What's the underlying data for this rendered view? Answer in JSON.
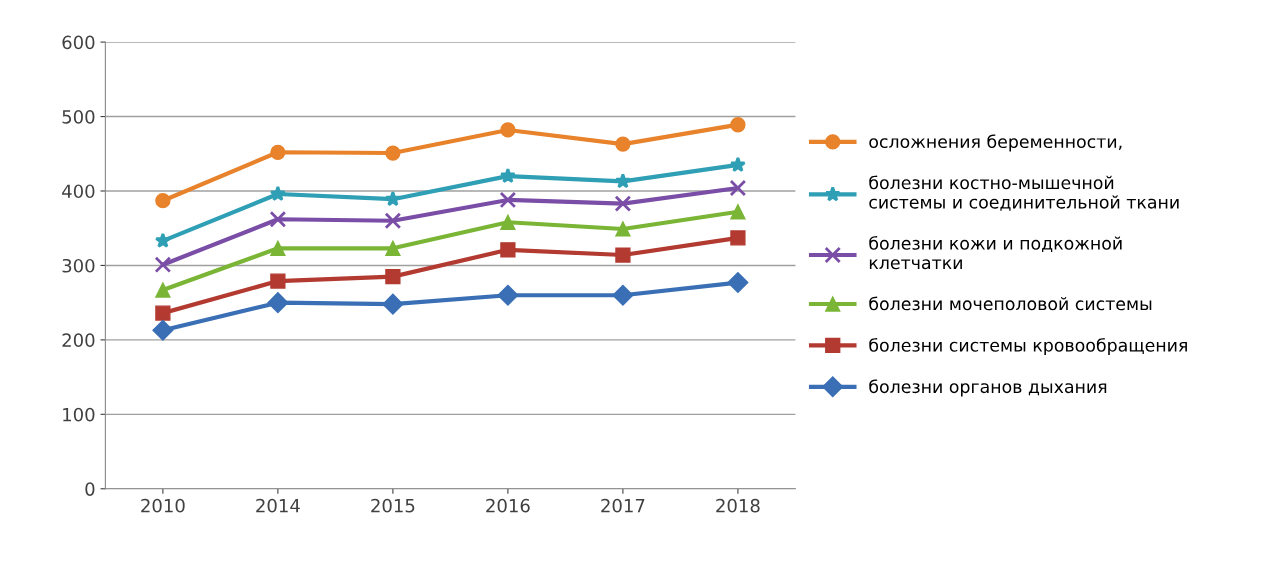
{
  "chart_data": {
    "type": "line",
    "categories": [
      "2010",
      "2014",
      "2015",
      "2016",
      "2017",
      "2018"
    ],
    "ylim": [
      0,
      600
    ],
    "yticks": [
      0,
      100,
      200,
      300,
      400,
      500,
      600
    ],
    "grid": "y",
    "legend": "right",
    "line_style": "solid",
    "series": [
      {
        "name": "осложнения беременности,",
        "color": "#e8822b",
        "marker": "circle",
        "values": [
          387,
          452,
          451,
          482,
          463,
          489
        ]
      },
      {
        "name": "болезни костно-мышечной системы и соединительной ткани",
        "color": "#2f9fb5",
        "marker": "star",
        "values": [
          333,
          396,
          389,
          420,
          413,
          435
        ]
      },
      {
        "name": "болезни кожи и подкожной клетчатки",
        "color": "#7a4ea6",
        "marker": "cross",
        "values": [
          301,
          362,
          360,
          388,
          383,
          404
        ]
      },
      {
        "name": "болезни мочеполовой системы",
        "color": "#7ab536",
        "marker": "triangle",
        "values": [
          267,
          323,
          323,
          358,
          349,
          372
        ]
      },
      {
        "name": "болезни системы кровообращения",
        "color": "#b23a30",
        "marker": "square",
        "values": [
          236,
          279,
          285,
          321,
          314,
          337
        ]
      },
      {
        "name": "болезни органов дыхания",
        "color": "#3a6fb5",
        "marker": "diamond",
        "values": [
          213,
          250,
          248,
          260,
          260,
          277
        ]
      }
    ]
  }
}
